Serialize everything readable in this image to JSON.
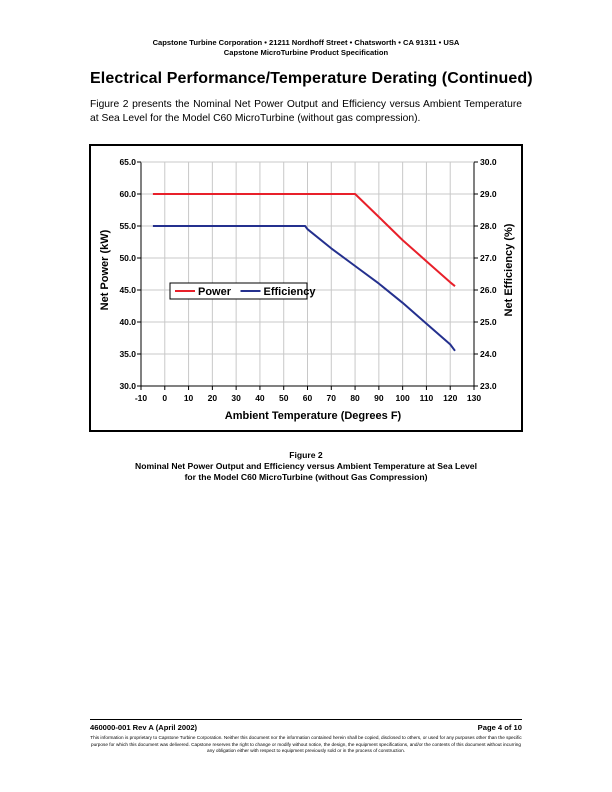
{
  "header": {
    "line1": "Capstone Turbine Corporation • 21211 Nordhoff Street • Chatsworth • CA 91311 • USA",
    "line2": "Capstone MicroTurbine Product Specification"
  },
  "section_title": "Electrical Performance/Temperature Derating (Continued)",
  "intro_text": "Figure 2 presents the Nominal Net Power Output and Efficiency versus Ambient Temperature at Sea Level for the Model C60 MicroTurbine (without gas compression).",
  "chart_data": {
    "type": "line",
    "title": "",
    "xlabel": "Ambient Temperature (Degrees F)",
    "ylabel": "Net Power (kW)",
    "y2label": "Net Efficiency (%)",
    "xlim": [
      -10,
      130
    ],
    "ylim": [
      30.0,
      65.0
    ],
    "y2lim": [
      23.0,
      30.0
    ],
    "x_ticks": [
      "-10",
      "0",
      "10",
      "20",
      "30",
      "40",
      "50",
      "60",
      "70",
      "80",
      "90",
      "100",
      "110",
      "120",
      "130"
    ],
    "y_ticks": [
      "30.0",
      "35.0",
      "40.0",
      "45.0",
      "50.0",
      "55.0",
      "60.0",
      "65.0"
    ],
    "y2_ticks": [
      "23.0",
      "24.0",
      "25.0",
      "26.0",
      "27.0",
      "28.0",
      "29.0",
      "30.0"
    ],
    "grid": true,
    "legend_position": "middle-left",
    "series": [
      {
        "name": "Power",
        "axis": "left",
        "color": "#e8202a",
        "x": [
          -5,
          0,
          10,
          20,
          30,
          40,
          50,
          60,
          70,
          80,
          90,
          100,
          110,
          120,
          122
        ],
        "y": [
          60.0,
          60.0,
          60.0,
          60.0,
          60.0,
          60.0,
          60.0,
          60.0,
          60.0,
          60.0,
          56.4,
          52.8,
          49.5,
          46.2,
          45.6
        ]
      },
      {
        "name": "Efficiency",
        "axis": "right",
        "color": "#24308e",
        "x": [
          -5,
          0,
          10,
          20,
          30,
          40,
          50,
          59,
          60,
          70,
          80,
          90,
          100,
          110,
          120,
          122
        ],
        "y": [
          28.0,
          28.0,
          28.0,
          28.0,
          28.0,
          28.0,
          28.0,
          28.0,
          27.9,
          27.3,
          26.75,
          26.2,
          25.6,
          24.95,
          24.3,
          24.1
        ]
      }
    ]
  },
  "caption": {
    "label": "Figure 2",
    "line1": "Nominal Net Power Output and Efficiency versus Ambient Temperature at Sea Level",
    "line2": "for the Model C60 MicroTurbine (without Gas Compression)"
  },
  "footer": {
    "doc_number": "460000-001 Rev A (April 2002)",
    "page": "Page 4 of 10",
    "disclaimer": "This information is proprietary to Capstone Turbine Corporation. Neither this document nor the information contained herein shall be copied, disclosed to others, or used for any purposes other than the specific purpose for which this document was delivered. Capstone reserves the right to change or modify without notice, the design, the equipment specifications, and/or the contents of this document without incurring any obligation either with respect to equipment previously sold or in the process of construction."
  }
}
